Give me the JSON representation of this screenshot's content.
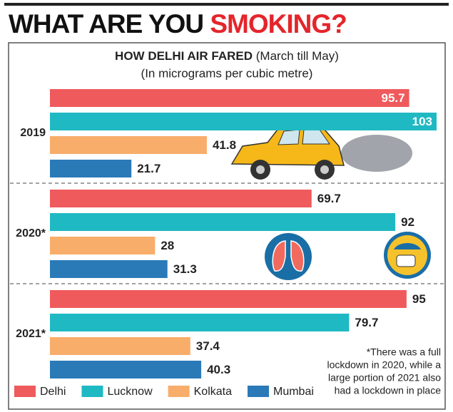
{
  "chart_data": {
    "type": "bar",
    "orientation": "horizontal",
    "title": [
      "WHAT ARE YOU ",
      "SMOKING?"
    ],
    "subtitle": [
      "HOW DELHI AIR FARED",
      " (March till May)"
    ],
    "unit_label": "(In micrograms per cubic metre)",
    "categories": [
      "2019",
      "2020*",
      "2021*"
    ],
    "series": [
      {
        "name": "Delhi",
        "color": "#ef5a5c",
        "values": [
          95.7,
          69.7,
          95
        ]
      },
      {
        "name": "Lucknow",
        "color": "#1fb9c3",
        "values": [
          103,
          92,
          79.7
        ]
      },
      {
        "name": "Kolkata",
        "color": "#f8ad6a",
        "values": [
          41.8,
          28,
          37.4
        ]
      },
      {
        "name": "Mumbai",
        "color": "#2a7ab8",
        "values": [
          21.7,
          31.3,
          40.3
        ]
      }
    ],
    "footnote": [
      "*There was a full",
      "lockdown in 2020, while a",
      "large portion of 2021 also",
      "had a lockdown in place"
    ]
  }
}
